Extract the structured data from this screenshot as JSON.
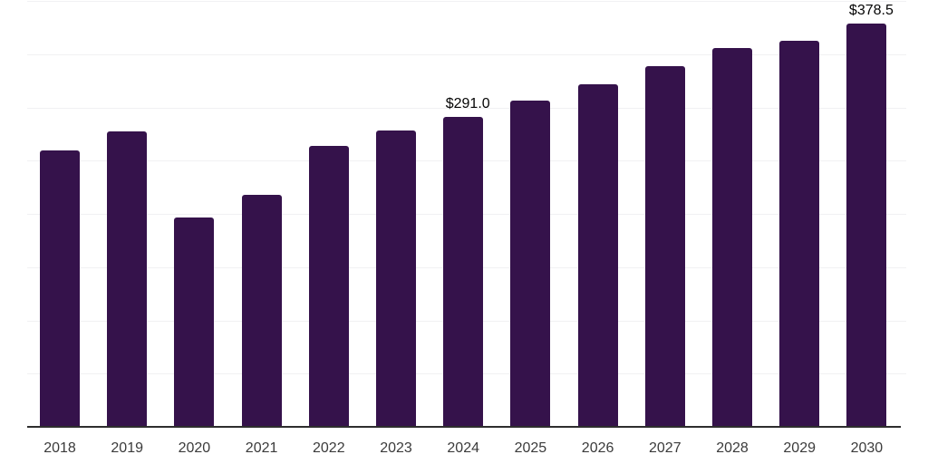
{
  "chart_data": {
    "type": "bar",
    "title": "",
    "xlabel": "",
    "ylabel": "",
    "categories": [
      "2018",
      "2019",
      "2020",
      "2021",
      "2022",
      "2023",
      "2024",
      "2025",
      "2026",
      "2027",
      "2028",
      "2029",
      "2030"
    ],
    "values": [
      260.0,
      277.5,
      196.5,
      218.0,
      264.1,
      278.5,
      291.0,
      306.5,
      321.5,
      338.7,
      355.4,
      362.4,
      378.5
    ],
    "value_labels": [
      "",
      "",
      "",
      "",
      "",
      "",
      "$291.0",
      "",
      "",
      "",
      "",
      "",
      "$378.5"
    ],
    "ylim": [
      0,
      400
    ],
    "grid_step": 50,
    "grid": true,
    "legend": false,
    "y_axis_tick_labels_visible": false,
    "bar_color": "#35124b",
    "grid_color": "#f1f1f3",
    "axis_line_color": "#2e2e2e",
    "tick_label_color": "#3b3b3b",
    "value_label_color": "#050505",
    "background_color": "#ffffff"
  }
}
